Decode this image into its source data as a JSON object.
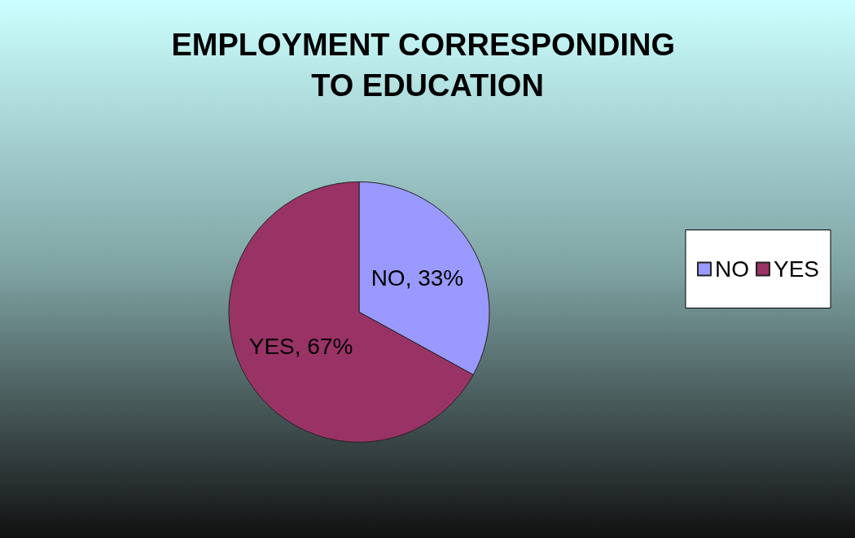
{
  "chart_data": {
    "type": "pie",
    "title": "EMPLOYMENT CORRESPONDING TO EDUCATION",
    "categories": [
      "NO",
      "YES"
    ],
    "values": [
      33,
      67
    ],
    "colors": [
      "#9999ff",
      "#993366"
    ],
    "value_labels": [
      "NO, 33%",
      "YES, 67%"
    ],
    "legend": "right"
  }
}
